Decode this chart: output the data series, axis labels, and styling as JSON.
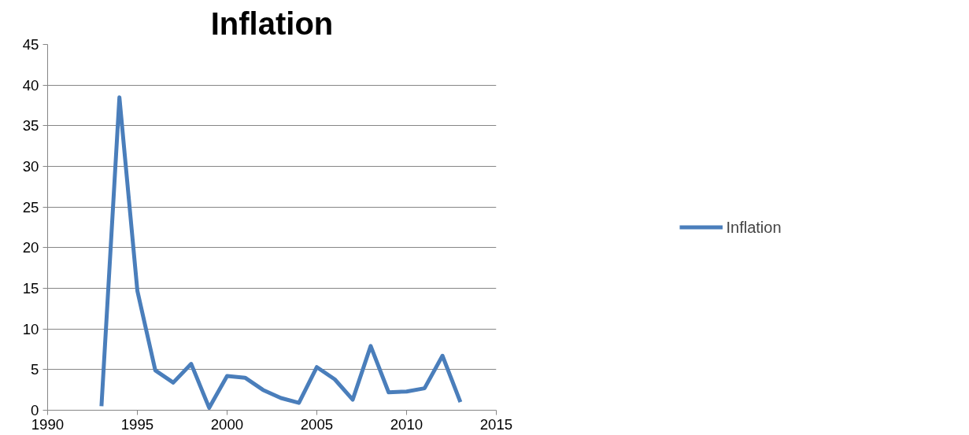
{
  "chart_data": {
    "type": "line",
    "title": "Inflation",
    "x": [
      1993,
      1994,
      1995,
      1996,
      1997,
      1998,
      1999,
      2000,
      2001,
      2002,
      2003,
      2004,
      2005,
      2006,
      2007,
      2008,
      2009,
      2010,
      2011,
      2012,
      2013
    ],
    "series": [
      {
        "name": "Inflation",
        "color": "#4a7ebb",
        "values": [
          0.5,
          38.5,
          14.7,
          4.9,
          3.4,
          5.7,
          0.3,
          4.2,
          4.0,
          2.5,
          1.5,
          0.9,
          5.3,
          3.8,
          1.3,
          7.9,
          2.2,
          2.3,
          2.7,
          6.7,
          1.0
        ]
      }
    ],
    "xlim": [
      1990,
      2015
    ],
    "xticks": [
      1990,
      1995,
      2000,
      2005,
      2010,
      2015
    ],
    "ylim": [
      0,
      45
    ],
    "yticks": [
      0,
      5,
      10,
      15,
      20,
      25,
      30,
      35,
      40,
      45
    ],
    "grid": "y",
    "legend": "right",
    "marker": "none",
    "line_style": "solid"
  }
}
